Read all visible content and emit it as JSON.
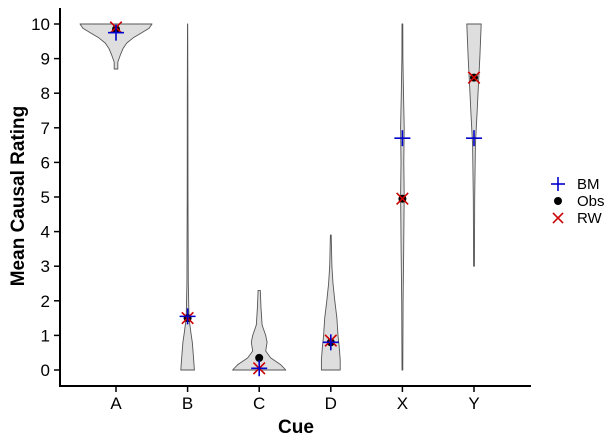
{
  "chart_data": {
    "type": "violin",
    "title": "",
    "xlabel": "Cue",
    "ylabel": "Mean Causal Rating",
    "ylim": [
      0,
      10
    ],
    "yticks": [
      0,
      1,
      2,
      3,
      4,
      5,
      6,
      7,
      8,
      9,
      10
    ],
    "categories": [
      "A",
      "B",
      "C",
      "D",
      "X",
      "Y"
    ],
    "violin_color": "#dedede",
    "distributions": [
      {
        "cue": "A",
        "min": 8.7,
        "max": 10,
        "widths": [
          [
            8.7,
            0.05
          ],
          [
            8.9,
            0.05
          ],
          [
            9.1,
            0.12
          ],
          [
            9.3,
            0.2
          ],
          [
            9.45,
            0.3
          ],
          [
            9.6,
            0.48
          ],
          [
            9.75,
            0.72
          ],
          [
            9.88,
            0.92
          ],
          [
            10,
            1.0
          ]
        ]
      },
      {
        "cue": "B",
        "min": 0,
        "max": 10,
        "widths": [
          [
            0,
            0.19
          ],
          [
            0.4,
            0.16
          ],
          [
            0.8,
            0.13
          ],
          [
            1.1,
            0.09
          ],
          [
            1.5,
            0.04
          ],
          [
            2.5,
            0.02
          ],
          [
            5,
            0.012
          ],
          [
            8,
            0.008
          ],
          [
            10,
            0.004
          ]
        ]
      },
      {
        "cue": "C",
        "min": 0,
        "max": 2.3,
        "widths": [
          [
            0,
            0.74
          ],
          [
            0.15,
            0.6
          ],
          [
            0.35,
            0.32
          ],
          [
            0.55,
            0.18
          ],
          [
            0.8,
            0.22
          ],
          [
            1.0,
            0.18
          ],
          [
            1.3,
            0.08
          ],
          [
            1.8,
            0.05
          ],
          [
            2.3,
            0.03
          ]
        ]
      },
      {
        "cue": "D",
        "min": 0,
        "max": 3.9,
        "widths": [
          [
            0,
            0.26
          ],
          [
            0.3,
            0.26
          ],
          [
            0.7,
            0.23
          ],
          [
            1.0,
            0.2
          ],
          [
            1.5,
            0.17
          ],
          [
            2.0,
            0.11
          ],
          [
            2.5,
            0.06
          ],
          [
            3.0,
            0.03
          ],
          [
            3.9,
            0.01
          ]
        ]
      },
      {
        "cue": "X",
        "min": 0,
        "max": 10,
        "widths": [
          [
            0,
            0.01
          ],
          [
            2,
            0.02
          ],
          [
            3.5,
            0.035
          ],
          [
            4.5,
            0.045
          ],
          [
            5,
            0.05
          ],
          [
            6,
            0.04
          ],
          [
            7,
            0.05
          ],
          [
            8,
            0.03
          ],
          [
            9,
            0.015
          ],
          [
            10,
            0.01
          ]
        ]
      },
      {
        "cue": "Y",
        "min": 3,
        "max": 10,
        "widths": [
          [
            3,
            0.01
          ],
          [
            5,
            0.02
          ],
          [
            6.5,
            0.04
          ],
          [
            7.5,
            0.09
          ],
          [
            8.4,
            0.13
          ],
          [
            9.0,
            0.16
          ],
          [
            9.5,
            0.18
          ],
          [
            10,
            0.2
          ]
        ]
      }
    ],
    "series": [
      {
        "name": "BM",
        "marker": "plus",
        "color": "#0000cc",
        "values": [
          9.75,
          1.55,
          0.05,
          0.8,
          6.7,
          6.7
        ]
      },
      {
        "name": "Obs",
        "marker": "dot",
        "color": "#000000",
        "values": [
          9.85,
          1.5,
          0.35,
          0.8,
          4.95,
          8.45
        ]
      },
      {
        "name": "RW",
        "marker": "x",
        "color": "#cc0000",
        "values": [
          9.9,
          1.5,
          0.05,
          0.85,
          4.95,
          8.45
        ]
      }
    ],
    "legend": {
      "placement": "right"
    },
    "grid": false
  }
}
